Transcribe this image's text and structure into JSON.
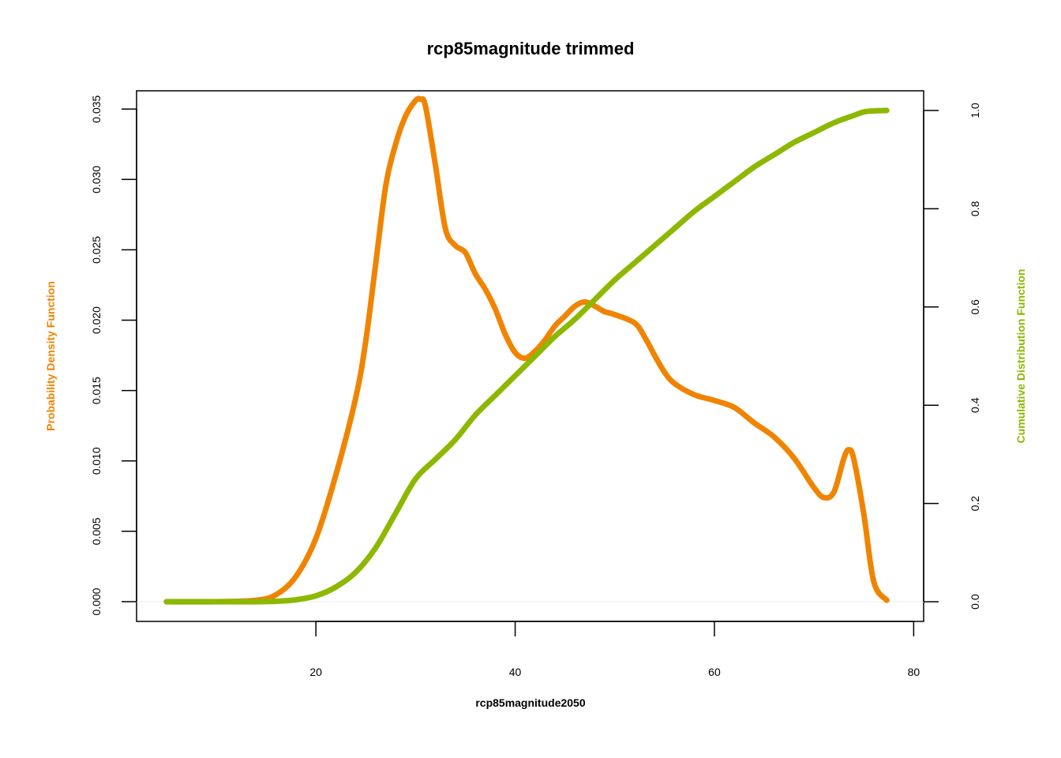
{
  "chart_data": {
    "type": "line",
    "title": "rcp85magnitude trimmed",
    "xlabel": "rcp85magnitude2050",
    "ylabel_left": "Probability Density Function",
    "ylabel_right": "Cumulative Distribution Function",
    "xlim": [
      2,
      81
    ],
    "ylim_left": [
      -0.0014,
      0.0363
    ],
    "ylim_right": [
      -0.04,
      1.04
    ],
    "x_ticks": [
      "20",
      "40",
      "60",
      "80"
    ],
    "y_left_ticks": [
      "0.000",
      "0.005",
      "0.010",
      "0.015",
      "0.020",
      "0.025",
      "0.030",
      "0.035"
    ],
    "y_right_ticks": [
      "0.0",
      "0.2",
      "0.4",
      "0.6",
      "0.8",
      "1.0"
    ],
    "grid": false,
    "colors": {
      "pdf": "#f08400",
      "cdf": "#8cb800",
      "axis": "#000000"
    },
    "series": [
      {
        "name": "Probability Density Function",
        "axis": "left",
        "x": [
          5,
          10,
          14,
          16,
          18,
          20,
          22,
          24,
          25,
          26,
          27,
          28,
          29,
          30,
          30.5,
          31,
          32,
          33,
          34,
          35,
          36,
          37,
          38,
          39,
          40,
          41,
          42,
          43,
          44,
          45,
          46,
          47,
          48,
          49,
          50,
          52,
          53,
          54,
          55,
          56,
          58,
          60,
          62,
          64,
          66,
          68,
          70,
          71,
          72,
          73,
          73.5,
          74,
          75,
          76,
          77.3
        ],
        "y": [
          0,
          0,
          0.0001,
          0.0005,
          0.0018,
          0.0045,
          0.009,
          0.0145,
          0.0185,
          0.024,
          0.0295,
          0.0325,
          0.0345,
          0.0356,
          0.0357,
          0.0352,
          0.031,
          0.0265,
          0.0253,
          0.0248,
          0.0233,
          0.0222,
          0.0208,
          0.019,
          0.0177,
          0.0173,
          0.0178,
          0.0186,
          0.0196,
          0.0203,
          0.021,
          0.0213,
          0.021,
          0.0206,
          0.0204,
          0.0198,
          0.0188,
          0.0175,
          0.0163,
          0.0155,
          0.0147,
          0.0143,
          0.0138,
          0.0127,
          0.0117,
          0.0102,
          0.0081,
          0.0074,
          0.0078,
          0.0102,
          0.0108,
          0.0101,
          0.0062,
          0.0014,
          0.0001
        ]
      },
      {
        "name": "Cumulative Distribution Function",
        "axis": "right",
        "x": [
          5,
          10,
          14,
          16,
          18,
          20,
          22,
          24,
          26,
          28,
          30,
          32,
          34,
          36,
          38,
          40,
          42,
          44,
          46,
          48,
          50,
          52,
          54,
          56,
          58,
          60,
          62,
          64,
          66,
          68,
          70,
          72,
          74,
          75,
          76,
          77.3
        ],
        "y": [
          0,
          0,
          0,
          0.001,
          0.004,
          0.012,
          0.03,
          0.06,
          0.11,
          0.18,
          0.25,
          0.29,
          0.33,
          0.38,
          0.42,
          0.46,
          0.5,
          0.54,
          0.575,
          0.615,
          0.655,
          0.69,
          0.725,
          0.76,
          0.795,
          0.825,
          0.855,
          0.885,
          0.91,
          0.935,
          0.955,
          0.975,
          0.99,
          0.997,
          0.999,
          1.0
        ]
      }
    ]
  }
}
